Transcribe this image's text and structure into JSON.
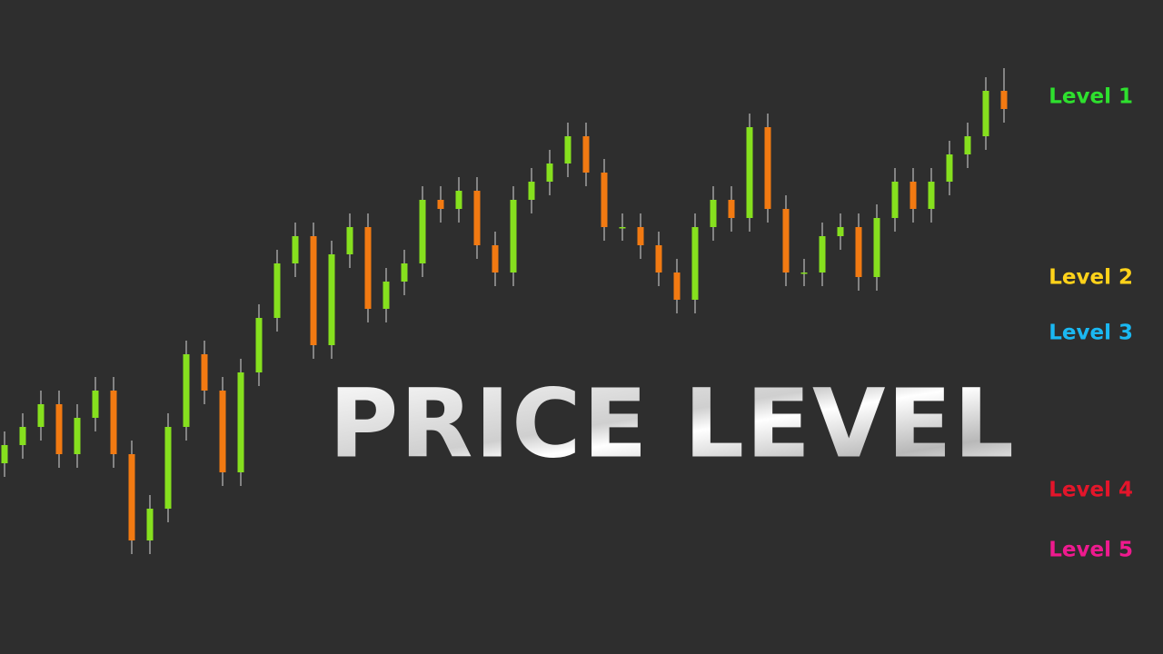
{
  "chart_data": {
    "type": "candlestick",
    "title": "PRICE LEVEL",
    "ylim": [
      0,
      720
    ],
    "open": [
      210,
      230,
      250,
      275,
      220,
      260,
      290,
      220,
      125,
      160,
      250,
      330,
      290,
      200,
      310,
      370,
      430,
      460,
      340,
      440,
      470,
      380,
      410,
      430,
      500,
      490,
      510,
      450,
      420,
      500,
      520,
      540,
      570,
      530,
      470,
      470,
      450,
      420,
      390,
      470,
      500,
      480,
      580,
      490,
      420,
      420,
      460,
      470,
      415,
      480,
      520,
      490,
      520,
      550,
      570,
      620
    ],
    "high": [
      245,
      265,
      290,
      290,
      275,
      305,
      305,
      235,
      175,
      265,
      345,
      345,
      305,
      325,
      385,
      445,
      475,
      475,
      455,
      485,
      485,
      425,
      445,
      515,
      515,
      525,
      525,
      465,
      515,
      535,
      555,
      585,
      585,
      545,
      485,
      485,
      465,
      435,
      485,
      515,
      515,
      595,
      595,
      505,
      435,
      475,
      485,
      485,
      495,
      535,
      535,
      535,
      565,
      585,
      635,
      645
    ],
    "low": [
      195,
      215,
      235,
      205,
      205,
      245,
      205,
      110,
      110,
      145,
      235,
      275,
      185,
      185,
      295,
      355,
      415,
      325,
      325,
      425,
      365,
      365,
      395,
      415,
      475,
      475,
      435,
      405,
      405,
      485,
      505,
      525,
      515,
      455,
      455,
      435,
      405,
      375,
      375,
      455,
      465,
      465,
      475,
      405,
      405,
      405,
      445,
      400,
      400,
      465,
      475,
      475,
      505,
      535,
      555,
      585
    ],
    "close": [
      230,
      250,
      275,
      220,
      260,
      290,
      220,
      125,
      160,
      250,
      330,
      290,
      200,
      310,
      370,
      430,
      460,
      340,
      440,
      470,
      380,
      410,
      430,
      500,
      490,
      510,
      450,
      420,
      500,
      520,
      540,
      570,
      530,
      470,
      470,
      450,
      420,
      390,
      470,
      500,
      480,
      580,
      490,
      420,
      420,
      460,
      470,
      415,
      480,
      520,
      490,
      520,
      550,
      570,
      620,
      600
    ],
    "up_color": "#86e01e",
    "down_color": "#f27a12",
    "levels": [
      {
        "name": "Level 1",
        "color": "#2ee02e",
        "value": 595
      },
      {
        "name": "Level 2",
        "color": "#ffd21a",
        "value": 396
      },
      {
        "name": "Level 3",
        "color": "#1ab8f2",
        "value": 335
      },
      {
        "name": "Level 4",
        "color": "#e3152b",
        "value": 162
      },
      {
        "name": "Level 5",
        "color": "#ef1a8e",
        "value": 96
      }
    ]
  }
}
